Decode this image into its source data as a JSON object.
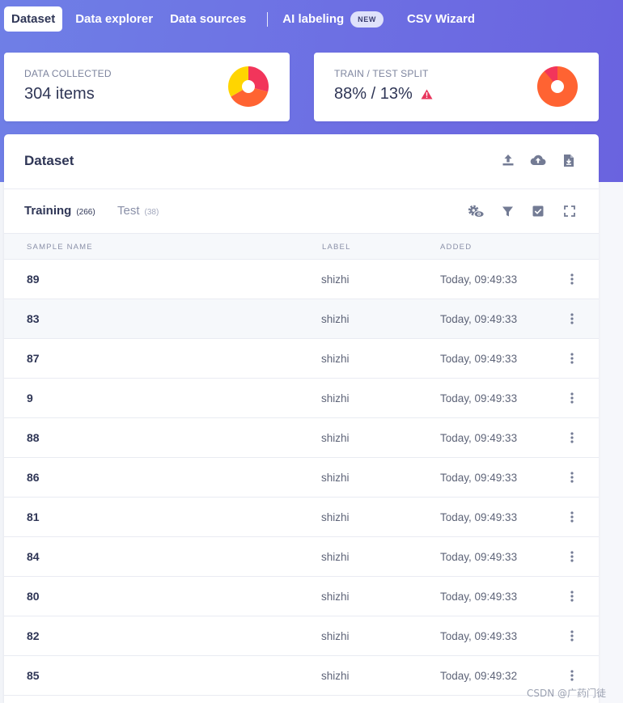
{
  "nav": {
    "tabs": [
      {
        "label": "Dataset",
        "active": true
      },
      {
        "label": "Data explorer",
        "active": false
      },
      {
        "label": "Data sources",
        "active": false
      }
    ],
    "ai_label": "AI labeling",
    "ai_badge": "NEW",
    "csv_label": "CSV Wizard"
  },
  "stats": {
    "collected": {
      "label": "DATA COLLECTED",
      "value": "304 items"
    },
    "split": {
      "label": "TRAIN / TEST SPLIT",
      "value": "88% / 13%"
    }
  },
  "colors": {
    "accent": "#6d6fe3",
    "pie_red": "#f2355b",
    "pie_orange": "#ff6332",
    "pie_yellow": "#ffd500",
    "warning": "#e8365d"
  },
  "panel": {
    "title": "Dataset",
    "tabs": [
      {
        "label": "Training",
        "count": "(266)",
        "active": true
      },
      {
        "label": "Test",
        "count": "(38)",
        "active": false
      }
    ],
    "columns": [
      "SAMPLE NAME",
      "LABEL",
      "ADDED"
    ],
    "rows": [
      {
        "name": "89",
        "label": "shizhi",
        "added": "Today, 09:49:33"
      },
      {
        "name": "83",
        "label": "shizhi",
        "added": "Today, 09:49:33"
      },
      {
        "name": "87",
        "label": "shizhi",
        "added": "Today, 09:49:33"
      },
      {
        "name": "9",
        "label": "shizhi",
        "added": "Today, 09:49:33"
      },
      {
        "name": "88",
        "label": "shizhi",
        "added": "Today, 09:49:33"
      },
      {
        "name": "86",
        "label": "shizhi",
        "added": "Today, 09:49:33"
      },
      {
        "name": "81",
        "label": "shizhi",
        "added": "Today, 09:49:33"
      },
      {
        "name": "84",
        "label": "shizhi",
        "added": "Today, 09:49:33"
      },
      {
        "name": "80",
        "label": "shizhi",
        "added": "Today, 09:49:33"
      },
      {
        "name": "82",
        "label": "shizhi",
        "added": "Today, 09:49:33"
      },
      {
        "name": "85",
        "label": "shizhi",
        "added": "Today, 09:49:32"
      }
    ]
  },
  "icons": {
    "header": [
      "upload-icon",
      "cloud-upload-icon",
      "file-download-icon"
    ],
    "toolbar": [
      "settings-view-icon",
      "filter-icon",
      "select-checkbox-icon",
      "fullscreen-icon"
    ],
    "row_menu": "more-vertical-icon",
    "warning": "warning-triangle-icon"
  },
  "watermark": "CSDN @广药门徒"
}
